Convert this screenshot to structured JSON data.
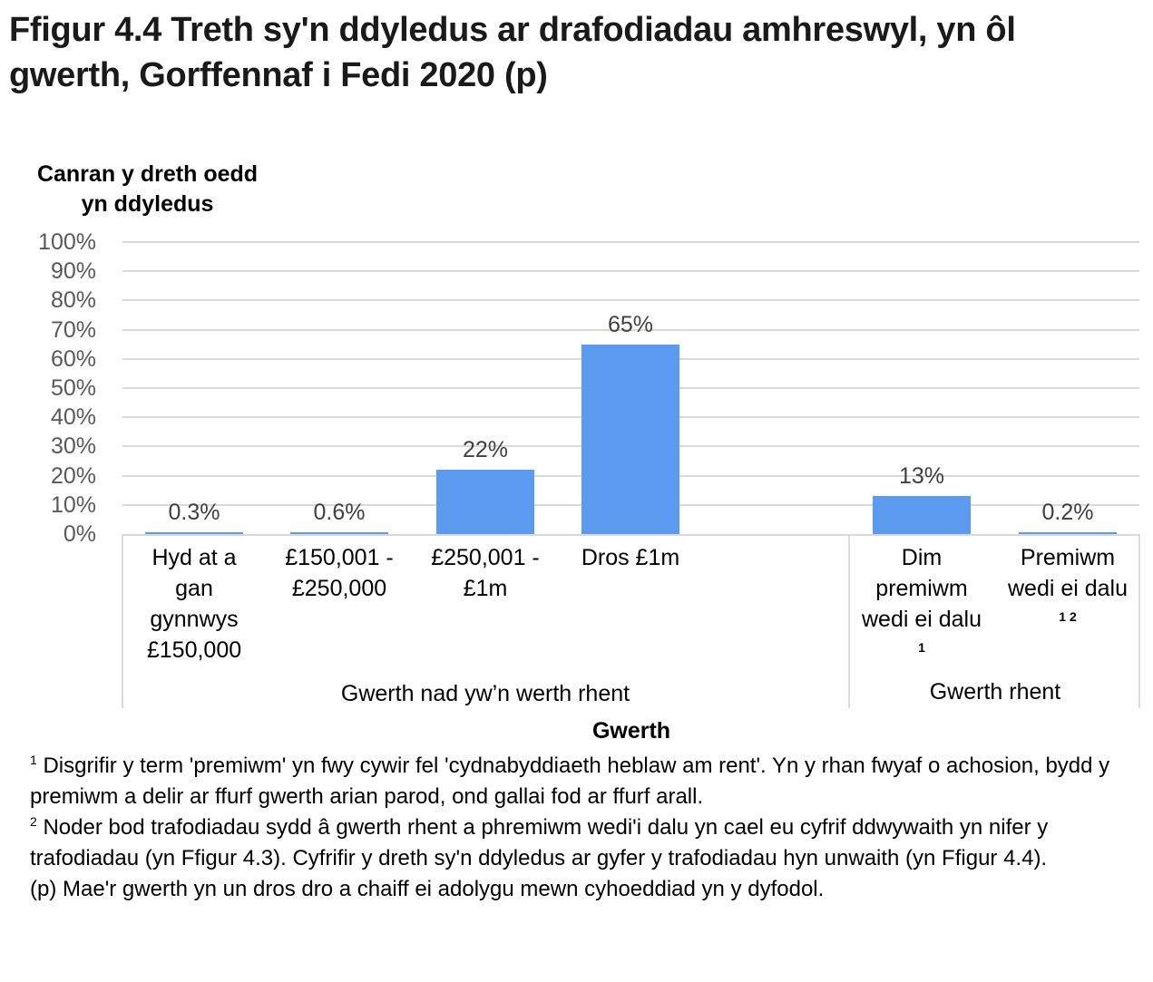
{
  "header": {
    "title": "Ffigur 4.4  Treth sy'n ddyledus ar drafodiadau amhreswyl, yn ôl gwerth, Gorffennaf i Fedi 2020 (p)"
  },
  "axis": {
    "y_label": "Canran y dreth oedd yn ddyledus",
    "x_label": "Gwerth",
    "y_ticks": [
      "100%",
      "90%",
      "80%",
      "70%",
      "60%",
      "50%",
      "40%",
      "30%",
      "20%",
      "10%",
      "0%"
    ]
  },
  "categories": [
    {
      "label": "Hyd at a gan gynnwys £150,000",
      "lines": [
        "Hyd at a",
        "gan",
        "gynnwys",
        "£150,000"
      ],
      "sup": "",
      "value_label": "0.3%"
    },
    {
      "label": "£150,001 - £250,000",
      "lines": [
        "£150,001 -",
        "£250,000"
      ],
      "sup": "",
      "value_label": "0.6%"
    },
    {
      "label": "£250,001 - £1m",
      "lines": [
        "£250,001 -",
        "£1m"
      ],
      "sup": "",
      "value_label": "22%"
    },
    {
      "label": "Dros £1m",
      "lines": [
        "Dros £1m"
      ],
      "sup": "",
      "value_label": "65%"
    },
    {
      "label": "Dim premiwm wedi ei dalu",
      "lines": [
        "Dim",
        "premiwm",
        "wedi ei dalu"
      ],
      "sup": "1",
      "value_label": "13%"
    },
    {
      "label": "Premiwm wedi ei dalu",
      "lines": [
        "Premiwm",
        "wedi ei dalu"
      ],
      "sup": "1 2",
      "value_label": "0.2%"
    }
  ],
  "groups": [
    {
      "label": "Gwerth nad yw’n werth rhent"
    },
    {
      "label": "Gwerth rhent"
    }
  ],
  "notes": {
    "note1_marker": "1",
    "note1": " Disgrifir y term 'premiwm'  yn fwy  cywir fel 'cydnabyddiaeth  heblaw  am rent'. Yn y rhan fwyaf o achosion, bydd y premiwm a delir ar ffurf  gwerth arian parod, ond gallai fod ar ffurf arall.",
    "note2_marker": "2",
    "note2": " Noder bod trafodiadau  sydd â gwerth rhent a phremiwm  wedi'i dalu yn cael eu cyfrif ddwywaith yn nifer y trafodiadau  (yn Ffigur 4.3). Cyfrifir y dreth sy'n ddyledus ar gyfer y trafodiadau  hyn unwaith (yn Ffigur 4.4).",
    "note3": "(p) Mae'r gwerth yn un dros dro a chaiff ei adolygu mewn  cyhoeddiad yn y dyfodol."
  },
  "colors": {
    "bar": "#5b9bef",
    "grid": "#d9d9d9",
    "tick_text": "#595959",
    "data_label": "#404040"
  },
  "chart_data": {
    "type": "bar",
    "title": "Ffigur 4.4  Treth sy'n ddyledus ar drafodiadau amhreswyl, yn ôl gwerth, Gorffennaf i Fedi 2020 (p)",
    "xlabel": "Gwerth",
    "ylabel": "Canran y dreth oedd yn ddyledus",
    "ylim": [
      0,
      100
    ],
    "y_ticks": [
      0,
      10,
      20,
      30,
      40,
      50,
      60,
      70,
      80,
      90,
      100
    ],
    "y_tick_format": "percent",
    "grid": true,
    "legend": null,
    "categories": [
      "Hyd at a gan gynnwys £150,000",
      "£150,001 - £250,000",
      "£250,001 - £1m",
      "Dros £1m",
      "Dim premiwm wedi ei dalu ¹",
      "Premiwm wedi ei dalu ¹ ²"
    ],
    "category_groups": [
      {
        "name": "Gwerth nad yw’n werth rhent",
        "categories": [
          "Hyd at a gan gynnwys £150,000",
          "£150,001 - £250,000",
          "£250,001 - £1m",
          "Dros £1m"
        ]
      },
      {
        "name": "Gwerth rhent",
        "categories": [
          "Dim premiwm wedi ei dalu ¹",
          "Premiwm wedi ei dalu ¹ ²"
        ]
      }
    ],
    "values": [
      0.3,
      0.6,
      22,
      65,
      13,
      0.2
    ],
    "data_labels": [
      "0.3%",
      "0.6%",
      "22%",
      "65%",
      "13%",
      "0.2%"
    ],
    "series": [
      {
        "name": "Canran y dreth oedd yn ddyledus",
        "values": [
          0.3,
          0.6,
          22,
          65,
          13,
          0.2
        ],
        "color": "#5b9bef"
      }
    ]
  }
}
